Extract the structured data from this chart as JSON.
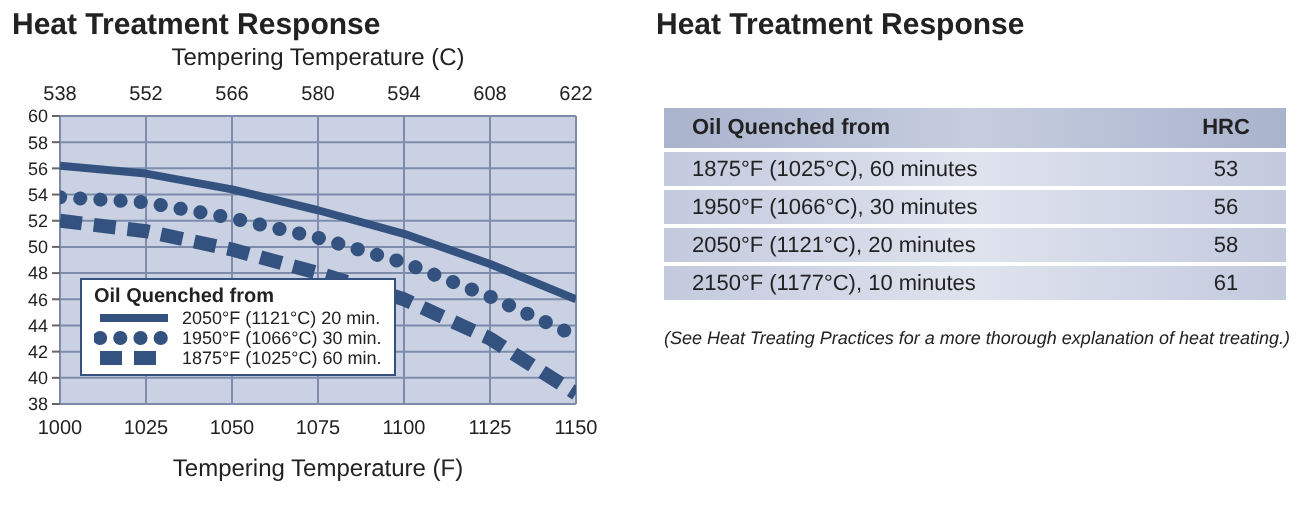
{
  "chart_data": [
    {
      "type": "line",
      "title": "Heat Treatment Response",
      "x2label": "Tempering Temperature (C)",
      "xlabel": "Tempering Temperature (F)",
      "legend_title": "Oil Quenched from",
      "x": [
        1000,
        1025,
        1050,
        1075,
        1100,
        1125,
        1150
      ],
      "series": [
        {
          "name": "2050°F (1121°C) 20 min.",
          "color": "#34527f",
          "line_style": "solid",
          "values": [
            56.2,
            55.6,
            54.4,
            52.8,
            51,
            48.7,
            46
          ]
        },
        {
          "name": "1950°F (1066°C) 30 min.",
          "color": "#34527f",
          "line_style": "dotted",
          "values": [
            53.8,
            53.4,
            52.2,
            50.7,
            48.8,
            46.2,
            43.2
          ]
        },
        {
          "name": "1875°F (1025°C) 60 min.",
          "color": "#34527f",
          "line_style": "dashed",
          "values": [
            52,
            51.2,
            49.8,
            48,
            46,
            43,
            38.8
          ]
        }
      ],
      "xlim": [
        1000,
        1150
      ],
      "xticks": [
        1000,
        1025,
        1050,
        1075,
        1100,
        1125,
        1150
      ],
      "x2lim": [
        538,
        622
      ],
      "x2ticks": [
        538,
        552,
        566,
        580,
        594,
        608,
        622
      ],
      "ylim": [
        38,
        60
      ],
      "yticks": [
        38,
        40,
        42,
        44,
        46,
        48,
        50,
        52,
        54,
        56,
        58,
        60
      ],
      "grid": true,
      "legend": "bottom left",
      "marker": "none"
    },
    {
      "type": "other",
      "title": "Heat Treatment Response",
      "xlabel": "Oil Quenched from",
      "ylabel": "HRC",
      "categories": [
        "1875°F (1025°C), 60 minutes",
        "1950°F (1066°C), 30 minutes",
        "2050°F (1121°C), 20 minutes",
        "2150°F (1177°C), 10 minutes"
      ],
      "values": [
        53,
        56,
        58,
        61
      ],
      "data_labels": true,
      "annotations": [
        "(See Heat Treating Practices for a more thorough explanation of heat treating.)"
      ]
    }
  ]
}
